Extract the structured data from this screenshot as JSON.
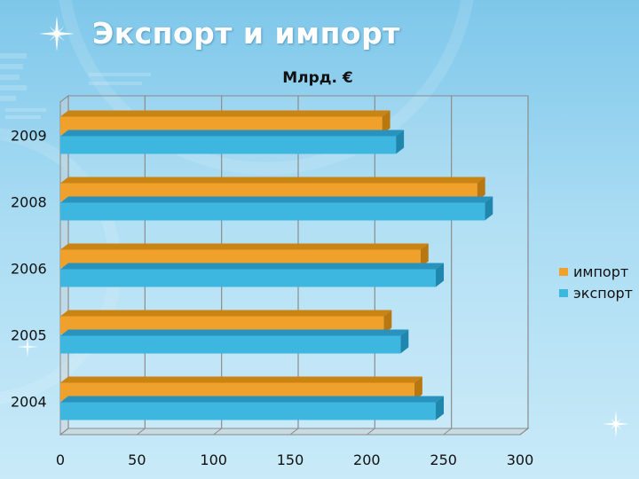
{
  "slide": {
    "title": "Экспорт и импорт"
  },
  "colors": {
    "import": "#f0a12c",
    "export": "#3db7e0",
    "import_dark": "#b97710",
    "export_dark": "#1f86ad"
  },
  "chart_data": {
    "type": "bar",
    "orientation": "horizontal",
    "title": "Млрд. €",
    "categories": [
      "2009",
      "2008",
      "2006",
      "2005",
      "2004"
    ],
    "series": [
      {
        "name": "импорт",
        "values": [
          210,
          272,
          235,
          211,
          231
        ]
      },
      {
        "name": "экспорт",
        "values": [
          219,
          277,
          245,
          222,
          245
        ]
      }
    ],
    "xlim": [
      0,
      300
    ],
    "xticks": [
      "0",
      "50",
      "100",
      "150",
      "200",
      "250",
      "300"
    ],
    "grid": true,
    "legend": "right"
  }
}
